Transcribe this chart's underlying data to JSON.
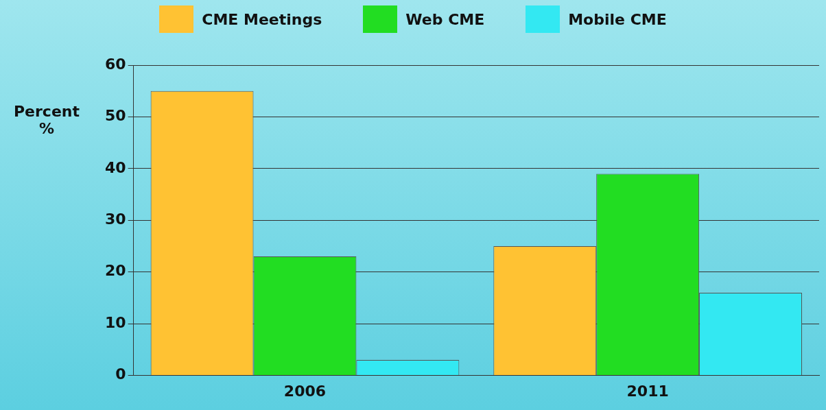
{
  "chart_data": {
    "type": "bar",
    "ylabel": "Percent %",
    "categories": [
      "2006",
      "2011"
    ],
    "series": [
      {
        "name": "CME Meetings",
        "color": "#ffc233",
        "values": [
          55,
          25
        ]
      },
      {
        "name": "Web CME",
        "color": "#22dd22",
        "values": [
          23,
          39
        ]
      },
      {
        "name": "Mobile CME",
        "color": "#33e8f2",
        "values": [
          3,
          16
        ]
      }
    ],
    "ylim": [
      0,
      60
    ],
    "yticks": [
      0,
      10,
      20,
      30,
      40,
      50,
      60
    ],
    "grid": "y",
    "legend": "top"
  }
}
